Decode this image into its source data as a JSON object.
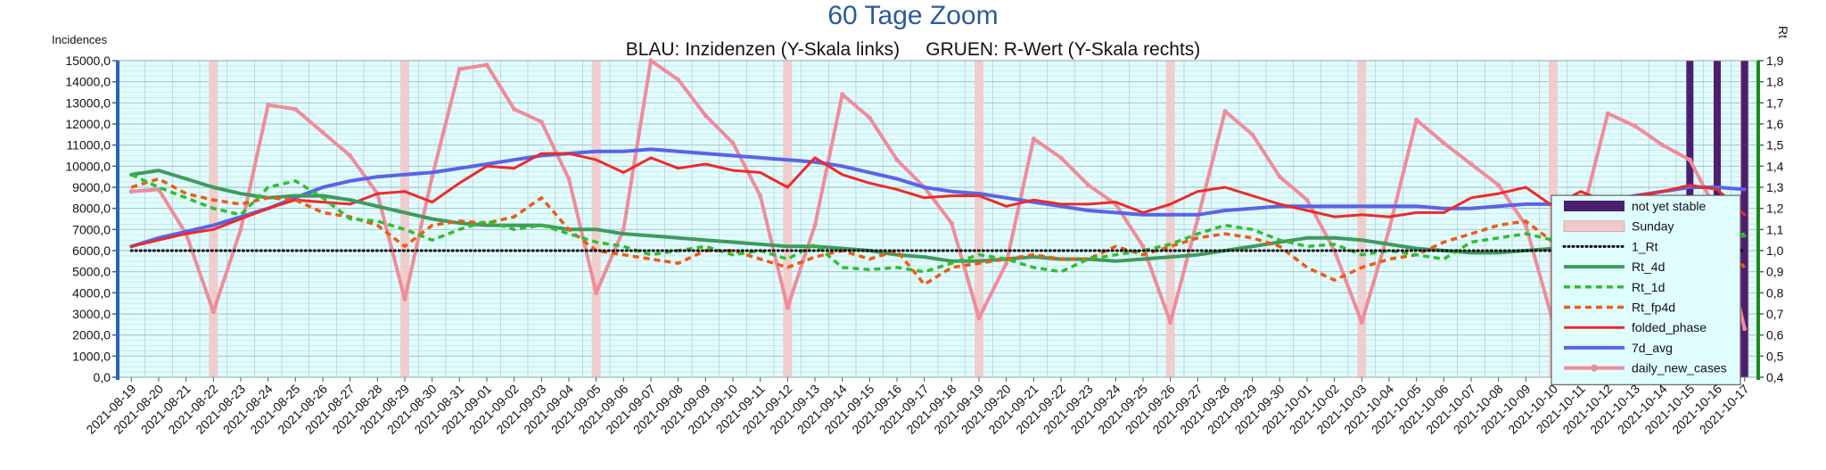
{
  "chart_data": {
    "type": "line",
    "title": "60 Tage Zoom",
    "subtitle": "BLAU: Inzidenzen (Y-Skala links)     GRUEN: R-Wert (Y-Skala rechts)",
    "ylabel_left": "Incidences",
    "ylabel_right": "Rt",
    "ylim_left": [
      0,
      15000
    ],
    "ylim_right": [
      0.4,
      1.9
    ],
    "grid": true,
    "legend_position": "right",
    "x": [
      "2021-08-19",
      "2021-08-20",
      "2021-08-21",
      "2021-08-22",
      "2021-08-23",
      "2021-08-24",
      "2021-08-25",
      "2021-08-26",
      "2021-08-27",
      "2021-08-28",
      "2021-08-29",
      "2021-08-30",
      "2021-08-31",
      "2021-09-01",
      "2021-09-02",
      "2021-09-03",
      "2021-09-04",
      "2021-09-05",
      "2021-09-06",
      "2021-09-07",
      "2021-09-08",
      "2021-09-09",
      "2021-09-10",
      "2021-09-11",
      "2021-09-12",
      "2021-09-13",
      "2021-09-14",
      "2021-09-15",
      "2021-09-16",
      "2021-09-17",
      "2021-09-18",
      "2021-09-19",
      "2021-09-20",
      "2021-09-21",
      "2021-09-22",
      "2021-09-23",
      "2021-09-24",
      "2021-09-25",
      "2021-09-26",
      "2021-09-27",
      "2021-09-28",
      "2021-09-29",
      "2021-09-30",
      "2021-10-01",
      "2021-10-02",
      "2021-10-03",
      "2021-10-04",
      "2021-10-05",
      "2021-10-06",
      "2021-10-07",
      "2021-10-08",
      "2021-10-09",
      "2021-10-10",
      "2021-10-11",
      "2021-10-12",
      "2021-10-13",
      "2021-10-14",
      "2021-10-15",
      "2021-10-16",
      "2021-10-17"
    ],
    "left_ticks": [
      "0,0",
      "1000,0",
      "2000,0",
      "3000,0",
      "4000,0",
      "5000,0",
      "6000,0",
      "7000,0",
      "8000,0",
      "9000,0",
      "10000,0",
      "11000,0",
      "12000,0",
      "13000,0",
      "14000,0",
      "15000,0"
    ],
    "right_ticks": [
      "0,4",
      "0,5",
      "0,6",
      "0,7",
      "0,8",
      "0,9",
      "1,0",
      "1,1",
      "1,2",
      "1,3",
      "1,4",
      "1,5",
      "1,6",
      "1,7",
      "1,8",
      "1,9"
    ],
    "sundays": [
      "2021-08-22",
      "2021-08-29",
      "2021-09-05",
      "2021-09-12",
      "2021-09-19",
      "2021-09-26",
      "2021-10-03",
      "2021-10-10",
      "2021-10-17"
    ],
    "not_yet_stable": [
      "2021-10-15",
      "2021-10-16",
      "2021-10-17"
    ],
    "series": [
      {
        "name": "not yet stable",
        "axis": "none",
        "color": "#4b1f6f",
        "style": "band"
      },
      {
        "name": "Sunday",
        "axis": "none",
        "color": "#f2c9c9",
        "style": "band"
      },
      {
        "name": "1_Rt",
        "axis": "right",
        "color": "#000000",
        "style": "dotted",
        "values": [
          1.0,
          1.0,
          1.0,
          1.0,
          1.0,
          1.0,
          1.0,
          1.0,
          1.0,
          1.0,
          1.0,
          1.0,
          1.0,
          1.0,
          1.0,
          1.0,
          1.0,
          1.0,
          1.0,
          1.0,
          1.0,
          1.0,
          1.0,
          1.0,
          1.0,
          1.0,
          1.0,
          1.0,
          1.0,
          1.0,
          1.0,
          1.0,
          1.0,
          1.0,
          1.0,
          1.0,
          1.0,
          1.0,
          1.0,
          1.0,
          1.0,
          1.0,
          1.0,
          1.0,
          1.0,
          1.0,
          1.0,
          1.0,
          1.0,
          1.0,
          1.0,
          1.0,
          1.0,
          1.0,
          1.0,
          1.0,
          1.0,
          1.0,
          1.0,
          1.0
        ]
      },
      {
        "name": "Rt_4d",
        "axis": "right",
        "color": "#3f9a5e",
        "style": "solid-thick",
        "values": [
          1.36,
          1.38,
          1.34,
          1.3,
          1.27,
          1.25,
          1.26,
          1.26,
          1.24,
          1.21,
          1.18,
          1.15,
          1.13,
          1.12,
          1.12,
          1.12,
          1.1,
          1.1,
          1.08,
          1.07,
          1.06,
          1.05,
          1.04,
          1.03,
          1.02,
          1.02,
          1.01,
          1.0,
          0.98,
          0.97,
          0.95,
          0.95,
          0.96,
          0.97,
          0.96,
          0.96,
          0.95,
          0.96,
          0.97,
          0.98,
          1.0,
          1.02,
          1.04,
          1.06,
          1.06,
          1.05,
          1.03,
          1.01,
          1.0,
          0.99,
          0.99,
          1.0,
          1.01,
          1.02,
          1.04,
          1.04,
          1.04,
          1.05,
          1.06,
          1.07
        ]
      },
      {
        "name": "Rt_1d",
        "axis": "right",
        "color": "#2fbf2f",
        "style": "dashed",
        "values": [
          1.36,
          1.3,
          1.25,
          1.2,
          1.17,
          1.3,
          1.33,
          1.25,
          1.15,
          1.14,
          1.1,
          1.05,
          1.1,
          1.14,
          1.1,
          1.12,
          1.08,
          1.04,
          1.02,
          0.98,
          1.0,
          1.02,
          0.98,
          1.0,
          0.96,
          1.03,
          0.92,
          0.91,
          0.92,
          0.9,
          0.94,
          0.98,
          0.96,
          0.92,
          0.9,
          0.96,
          0.98,
          1.0,
          1.03,
          1.08,
          1.12,
          1.1,
          1.05,
          1.02,
          1.03,
          0.98,
          1.0,
          0.98,
          0.96,
          1.04,
          1.06,
          1.08,
          1.05,
          1.02,
          1.04,
          1.08,
          1.06,
          1.1,
          1.04,
          1.08
        ]
      },
      {
        "name": "Rt_fp4d",
        "axis": "right",
        "color": "#ef5a14",
        "style": "dashed",
        "values": [
          1.3,
          1.34,
          1.27,
          1.24,
          1.22,
          1.25,
          1.24,
          1.18,
          1.16,
          1.12,
          1.02,
          1.12,
          1.14,
          1.13,
          1.16,
          1.25,
          1.1,
          1.0,
          0.98,
          0.96,
          0.94,
          1.0,
          1.0,
          0.96,
          0.92,
          0.97,
          1.0,
          0.96,
          1.0,
          0.84,
          0.92,
          0.94,
          0.96,
          0.98,
          0.96,
          0.96,
          1.02,
          0.98,
          1.02,
          1.06,
          1.08,
          1.06,
          1.02,
          0.92,
          0.86,
          0.92,
          0.96,
          0.98,
          1.04,
          1.08,
          1.12,
          1.14,
          1.04,
          0.98,
          0.96,
          1.0,
          1.08,
          1.06,
          1.06,
          0.92
        ]
      },
      {
        "name": "folded_phase",
        "axis": "left",
        "color": "#ee2a2a",
        "style": "solid",
        "values": [
          6200,
          6500,
          6800,
          7000,
          7500,
          8000,
          8400,
          8300,
          8200,
          8700,
          8800,
          8300,
          9200,
          10000,
          9900,
          10600,
          10600,
          10300,
          9700,
          10400,
          9900,
          10100,
          9800,
          9700,
          9000,
          10400,
          9600,
          9200,
          8900,
          8500,
          8600,
          8600,
          8100,
          8400,
          8200,
          8200,
          8300,
          7800,
          8200,
          8800,
          9000,
          8600,
          8200,
          7900,
          7600,
          7700,
          7600,
          7800,
          7800,
          8500,
          8700,
          9000,
          8100,
          8800,
          8300,
          8600,
          8800,
          9100,
          8900,
          7700
        ]
      },
      {
        "name": "7d_avg",
        "axis": "left",
        "color": "#5a64e6",
        "style": "solid-thick",
        "values": [
          6200,
          6600,
          6900,
          7200,
          7600,
          8000,
          8500,
          9000,
          9300,
          9500,
          9600,
          9700,
          9900,
          10100,
          10300,
          10500,
          10600,
          10700,
          10700,
          10800,
          10700,
          10600,
          10500,
          10400,
          10300,
          10200,
          10000,
          9700,
          9400,
          9000,
          8800,
          8700,
          8500,
          8300,
          8100,
          7900,
          7800,
          7700,
          7700,
          7700,
          7900,
          8000,
          8100,
          8100,
          8100,
          8100,
          8100,
          8100,
          8000,
          8000,
          8100,
          8200,
          8200,
          8300,
          8400,
          8600,
          8800,
          9000,
          9000,
          8900
        ]
      },
      {
        "name": "daily_new_cases",
        "axis": "left",
        "color": "#f08c9a",
        "style": "solid-thick-markers",
        "values": [
          8800,
          8900,
          6800,
          3100,
          7000,
          12900,
          12700,
          11600,
          10500,
          8700,
          3700,
          9500,
          14600,
          14800,
          12700,
          12100,
          9400,
          4000,
          7000,
          15000,
          14100,
          12400,
          11100,
          8600,
          3300,
          7200,
          13400,
          12300,
          10300,
          9000,
          7300,
          2800,
          5400,
          11300,
          10400,
          9100,
          8200,
          6200,
          2600,
          7500,
          12600,
          11500,
          9500,
          8400,
          6000,
          2600,
          7000,
          12200,
          11100,
          10100,
          9100,
          7200,
          2600,
          7400,
          12500,
          11900,
          11000,
          10300,
          7800,
          2300
        ]
      }
    ]
  }
}
